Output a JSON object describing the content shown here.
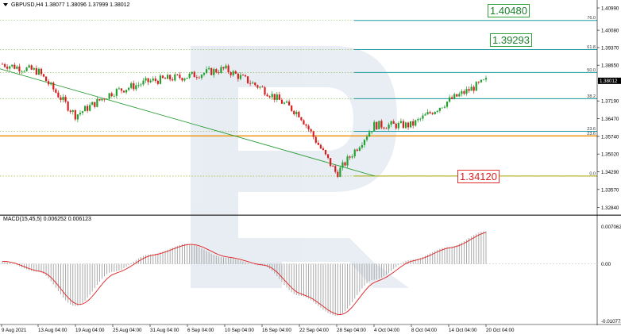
{
  "header": {
    "symbol_text": "GBPUSD,H4",
    "ohlc_text": "1.38077 1.38096 1.37999 1.38012"
  },
  "macd_header": {
    "label": "MACD(15,45,5)",
    "values_text": "0.006252 0.006123"
  },
  "price_axis": {
    "ticks": [
      "1.40990",
      "1.40080",
      "1.39370",
      "1.38650",
      "1.37190",
      "1.36470",
      "1.35740",
      "1.35020",
      "1.34290",
      "1.33570",
      "1.32840"
    ],
    "current_price": "1.38012"
  },
  "macd_axis": {
    "ticks": [
      "0.007062",
      "0.00",
      "-0.010772"
    ]
  },
  "fib_levels": [
    {
      "pct": "76.0"
    },
    {
      "pct": "61.8"
    },
    {
      "pct": "50.0"
    },
    {
      "pct": "38.2"
    },
    {
      "pct": "23.6"
    },
    {
      "pct": "23.6"
    },
    {
      "pct": "0.0"
    }
  ],
  "level_boxes": {
    "box_1": "1.40480",
    "box_2": "1.39293",
    "box_3": "1.34120"
  },
  "x_axis_labels": [
    "9 Aug 2021",
    "13 Aug 04:00",
    "19 Aug 04:00",
    "25 Aug 04:00",
    "31 Aug 04:00",
    "6 Sep 04:00",
    "10 Sep 04:00",
    "16 Sep 04:00",
    "22 Sep 04:00",
    "28 Sep 04:00",
    "4 Oct 04:00",
    "8 Oct 04:00",
    "14 Oct 04:00",
    "20 Oct 04:00"
  ],
  "colors": {
    "bull": "#22a030",
    "bear": "#d62020",
    "fib": "#1a9aa0",
    "support": "#f08c00",
    "trend": "#2e9f3a",
    "macd_hist": "#a8a8a8",
    "macd_signal": "#e02020"
  },
  "chart_data": [
    {
      "type": "candlestick",
      "symbol": "GBPUSD",
      "timeframe": "H4",
      "ylim": [
        1.3256,
        1.4125
      ],
      "close_series_approx": [
        {
          "x": "9 Aug 2021",
          "y": 1.387
        },
        {
          "x": "13 Aug 04:00",
          "y": 1.384
        },
        {
          "x": "19 Aug 04:00",
          "y": 1.366
        },
        {
          "x": "25 Aug 04:00",
          "y": 1.3755
        },
        {
          "x": "31 Aug 04:00",
          "y": 1.38
        },
        {
          "x": "6 Sep 04:00",
          "y": 1.382
        },
        {
          "x": "10 Sep 04:00",
          "y": 1.385
        },
        {
          "x": "16 Sep 04:00",
          "y": 1.377
        },
        {
          "x": "22 Sep 04:00",
          "y": 1.3665
        },
        {
          "x": "28 Sep 04:00",
          "y": 1.342
        },
        {
          "x": "4 Oct 04:00",
          "y": 1.362
        },
        {
          "x": "8 Oct 04:00",
          "y": 1.362
        },
        {
          "x": "14 Oct 04:00",
          "y": 1.372
        },
        {
          "x": "20 Oct 04:00",
          "y": 1.3801
        }
      ],
      "fibonacci": [
        {
          "pct": 76.0,
          "price": 1.4048
        },
        {
          "pct": 61.8,
          "price": 1.3929
        },
        {
          "pct": 50.0,
          "price": 1.3835
        },
        {
          "pct": 38.2,
          "price": 1.3728
        },
        {
          "pct": 23.6,
          "price": 1.3595
        },
        {
          "pct": 23.6,
          "price": 1.3576
        },
        {
          "pct": 0.0,
          "price": 1.3412
        }
      ]
    },
    {
      "type": "bar",
      "name": "MACD(15,45,5)",
      "ylim": [
        -0.010772,
        0.007062
      ],
      "histogram_approx": [
        {
          "x": "9 Aug 2021",
          "y": 0.0005
        },
        {
          "x": "13 Aug 04:00",
          "y": -0.0015
        },
        {
          "x": "19 Aug 04:00",
          "y": -0.008
        },
        {
          "x": "25 Aug 04:00",
          "y": -0.0015
        },
        {
          "x": "31 Aug 04:00",
          "y": 0.0018
        },
        {
          "x": "6 Sep 04:00",
          "y": 0.0038
        },
        {
          "x": "10 Sep 04:00",
          "y": 0.0012
        },
        {
          "x": "16 Sep 04:00",
          "y": -0.0003
        },
        {
          "x": "22 Sep 04:00",
          "y": -0.006
        },
        {
          "x": "28 Sep 04:00",
          "y": -0.0098
        },
        {
          "x": "4 Oct 04:00",
          "y": -0.003
        },
        {
          "x": "8 Oct 04:00",
          "y": 0.0008
        },
        {
          "x": "14 Oct 04:00",
          "y": 0.0032
        },
        {
          "x": "20 Oct 04:00",
          "y": 0.0062
        }
      ],
      "signal_last": 0.006123,
      "macd_last": 0.006252
    }
  ]
}
